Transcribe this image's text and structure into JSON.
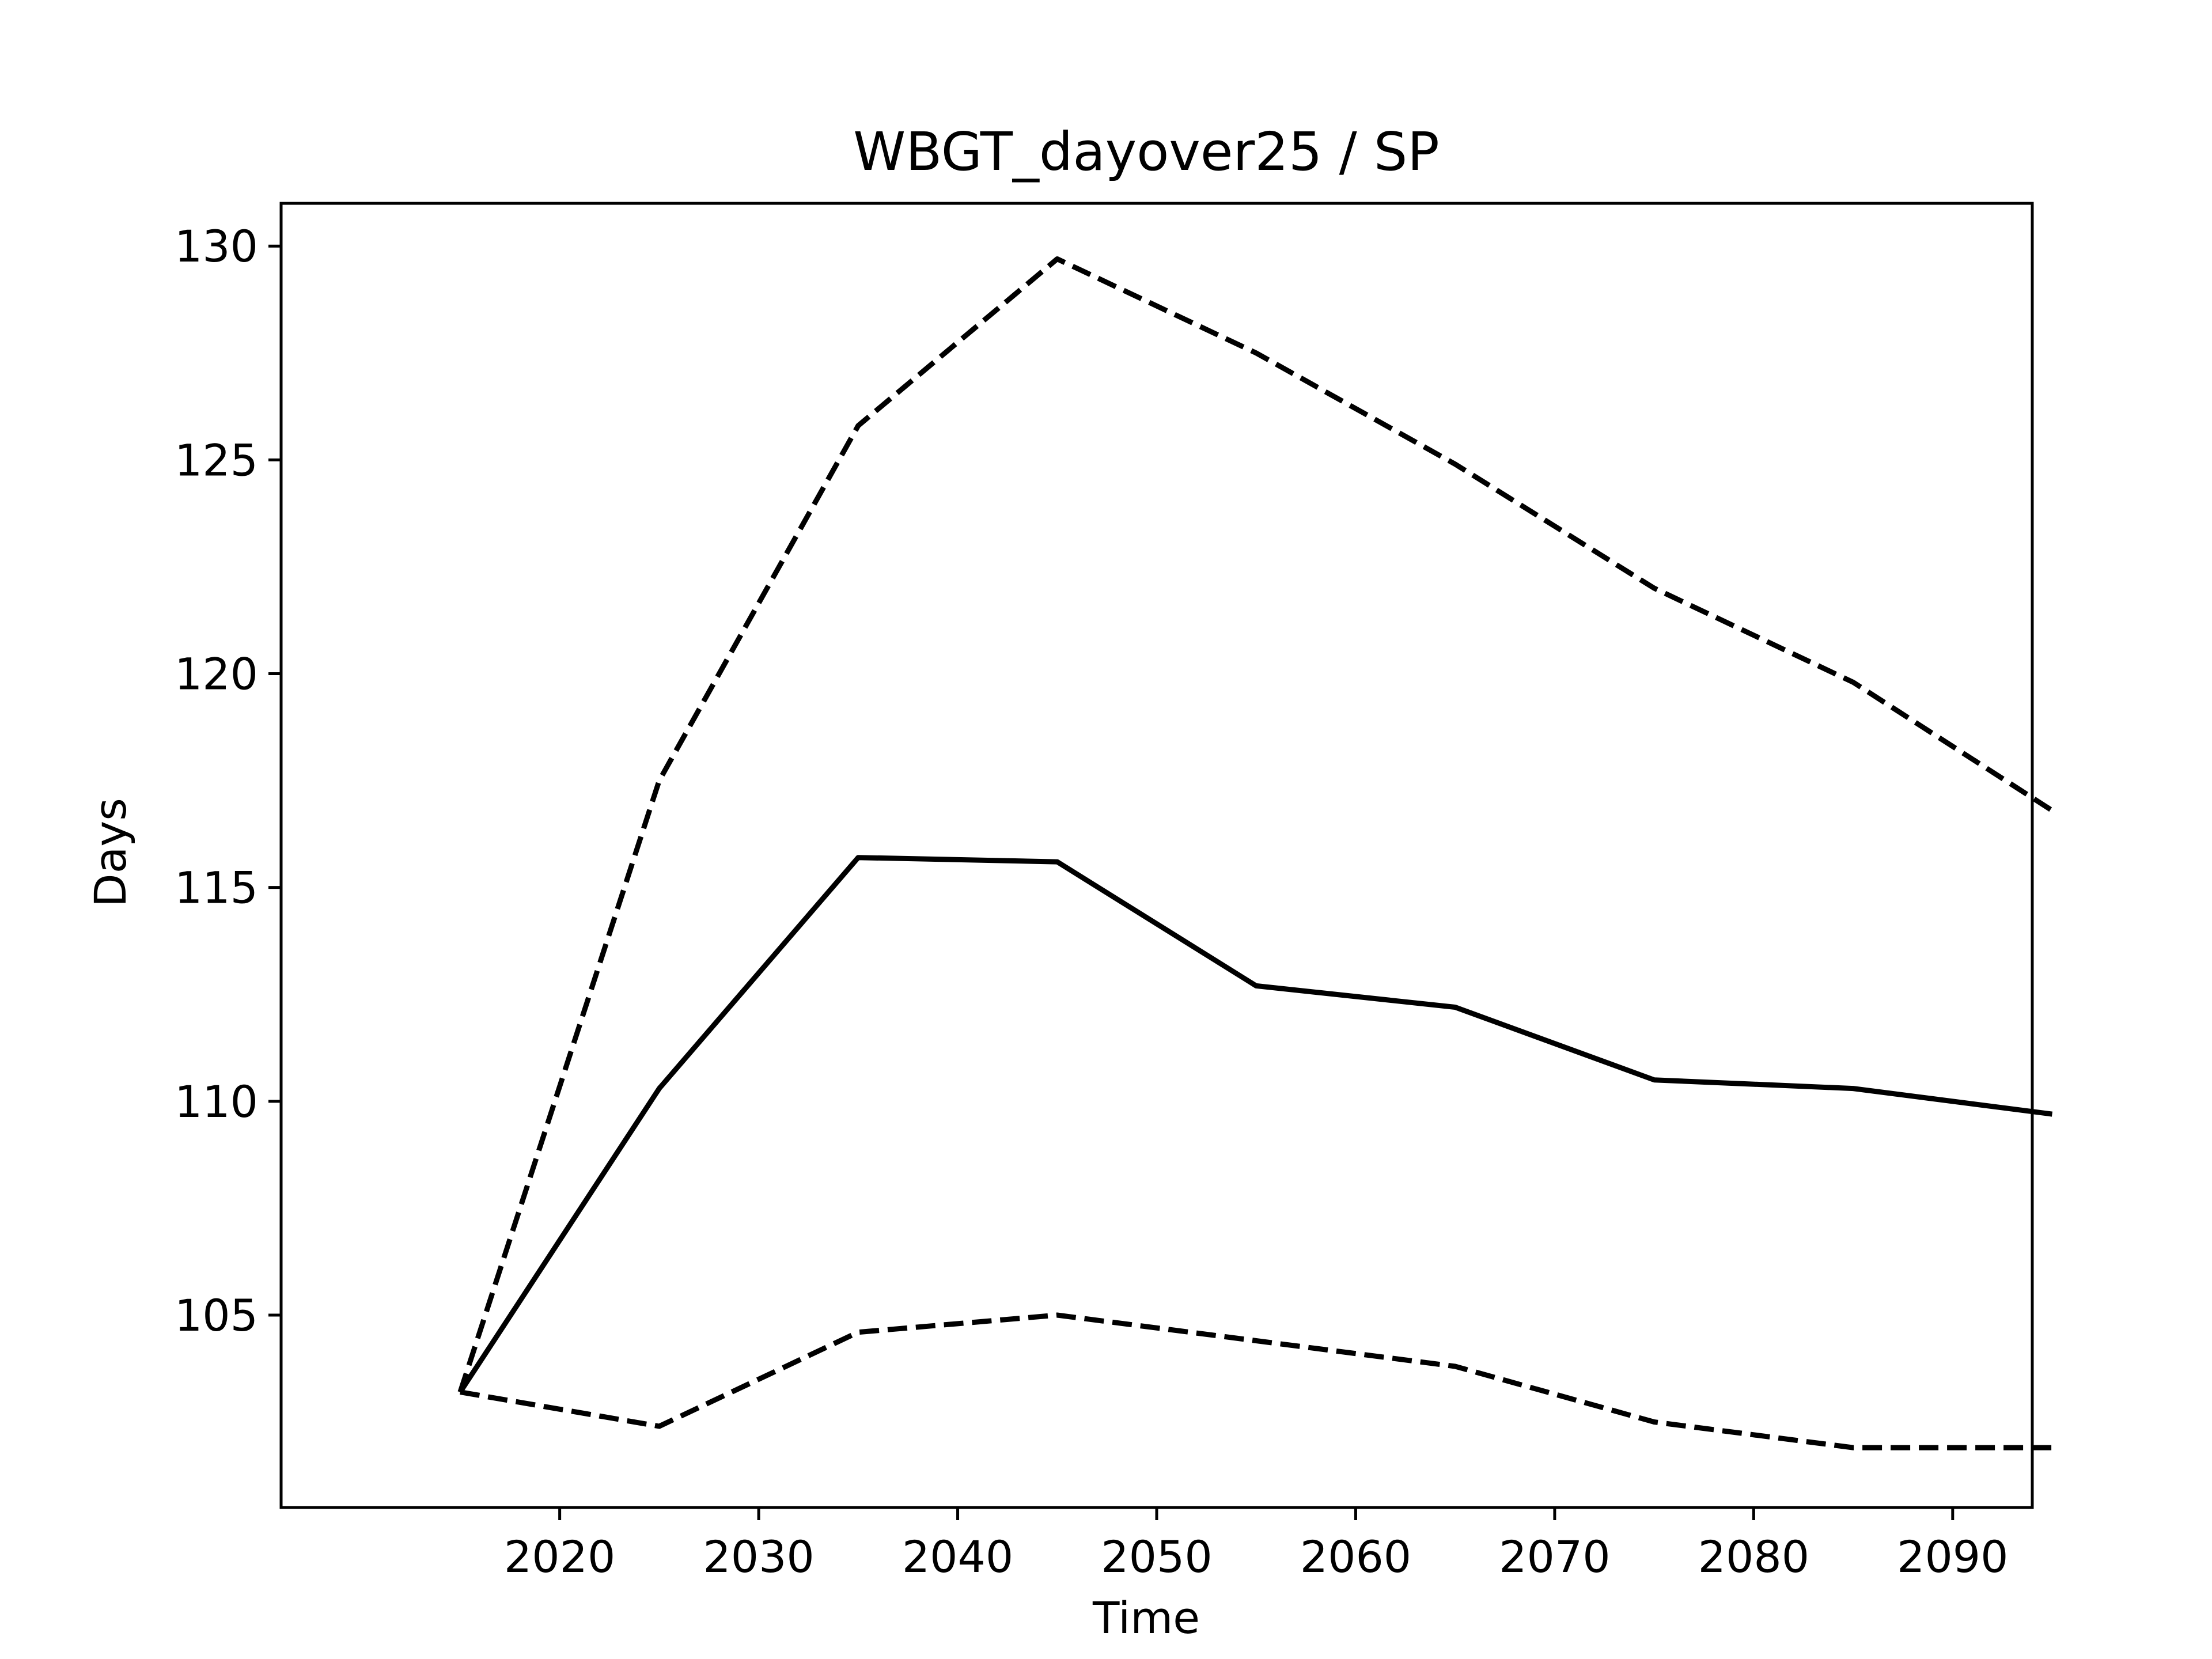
{
  "chart_data": {
    "type": "line",
    "title": "WBGT_dayover25 / SP",
    "xlabel": "Time",
    "ylabel": "Days",
    "x": [
      2015,
      2025,
      2035,
      2045,
      2055,
      2065,
      2075,
      2085,
      2095
    ],
    "xlim": [
      2006,
      2094
    ],
    "ylim": [
      100.5,
      131
    ],
    "xticks": [
      2020,
      2030,
      2040,
      2050,
      2060,
      2070,
      2080,
      2090
    ],
    "yticks": [
      105,
      110,
      115,
      120,
      125,
      130
    ],
    "grid": false,
    "series": [
      {
        "style": "solid",
        "values": [
          103.2,
          110.3,
          115.7,
          115.6,
          112.7,
          112.2,
          110.5,
          110.3,
          109.7
        ]
      },
      {
        "style": "dashed",
        "values": [
          103.2,
          117.5,
          125.8,
          129.7,
          127.5,
          124.9,
          122.0,
          119.8,
          116.8
        ]
      },
      {
        "style": "dashed",
        "values": [
          103.2,
          102.4,
          104.6,
          105.0,
          104.4,
          103.8,
          102.5,
          101.9,
          101.9
        ]
      }
    ],
    "colors": {
      "line": "#000000",
      "axes": "#000000",
      "background": "#ffffff"
    }
  }
}
